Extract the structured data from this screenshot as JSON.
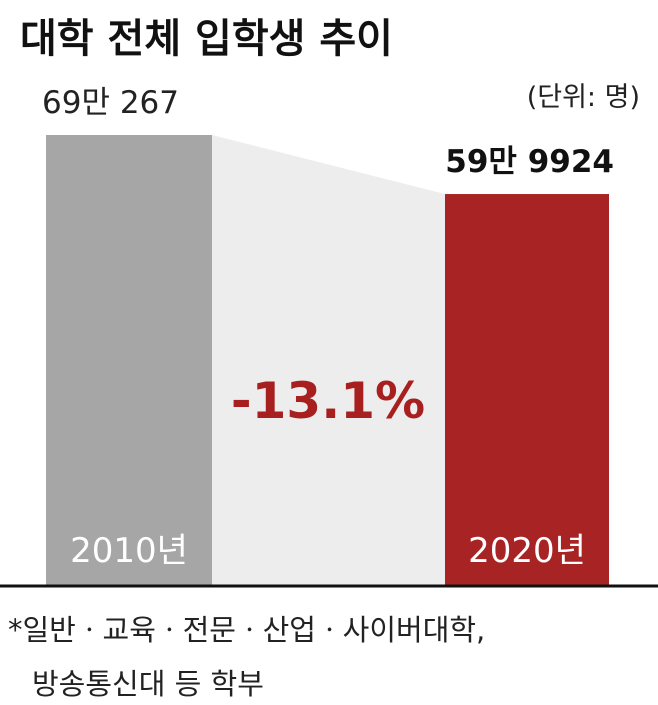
{
  "chart_data": {
    "type": "bar",
    "title": "대학 전체 입학생 추이",
    "unit": "(단위: 명)",
    "categories": [
      "2010년",
      "2020년"
    ],
    "values": [
      690267,
      599924
    ],
    "value_labels": [
      "69만 267",
      "59만 9924"
    ],
    "change_label": "-13.1%",
    "footnote": [
      "*일반ㆍ교육ㆍ전문ㆍ산업ㆍ사이버대학,",
      "방송통신대 등 학부"
    ],
    "colors": {
      "bar_2010": "#a6a6a6",
      "bar_2020": "#a82424",
      "connector": "#ededed",
      "change_text": "#a81f1f",
      "baseline": "#111111"
    }
  }
}
